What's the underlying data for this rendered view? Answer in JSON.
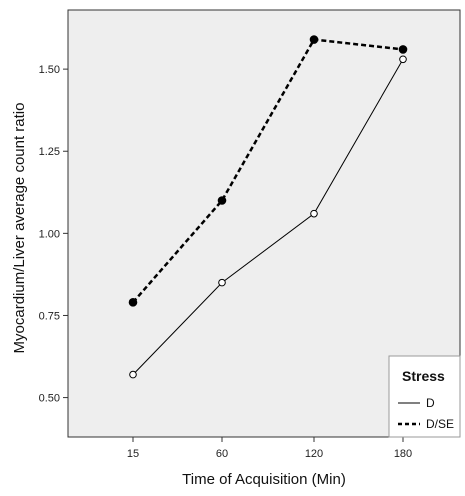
{
  "chart_data": {
    "type": "line",
    "xlabel": "Time of Acquisition (Min)",
    "ylabel": "Myocardium/Liver average count ratio",
    "categories": [
      "15",
      "60",
      "120",
      "180"
    ],
    "y_ticks": [
      "0.50",
      "0.75",
      "1.00",
      "1.25",
      "1.50"
    ],
    "ylim": [
      0.38,
      1.68
    ],
    "grid": false,
    "legend": {
      "title": "Stress",
      "position": "bottom-right"
    },
    "series": [
      {
        "name": "D",
        "line_style": "solid",
        "marker": "open-circle",
        "values": [
          0.57,
          0.85,
          1.06,
          1.53
        ]
      },
      {
        "name": "D/SE",
        "line_style": "dashed",
        "marker": "filled-circle",
        "values": [
          0.79,
          1.1,
          1.59,
          1.56
        ]
      }
    ],
    "colors": {
      "plot_background": "#eeeeee",
      "line": "#000000"
    }
  }
}
